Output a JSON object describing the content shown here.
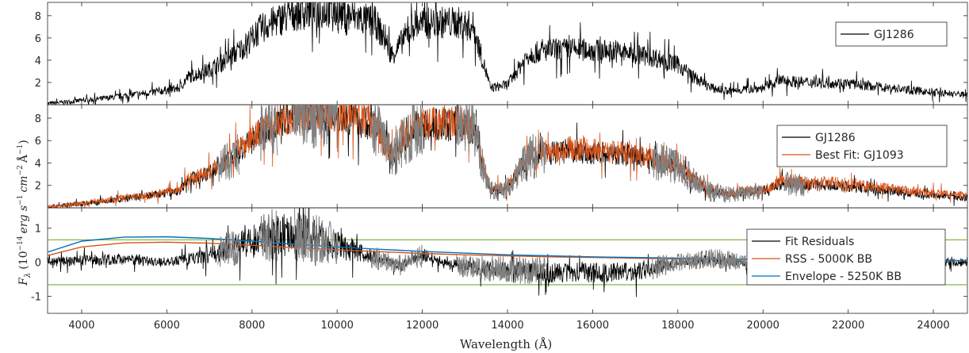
{
  "figure": {
    "xlabel": "Wavelength (Å)",
    "ylabel": "F_λ (10^-14 erg s^-1 cm^-2 Å^-1)",
    "ylabel_parts": {
      "base": "F",
      "sub": "λ",
      "scale": "10",
      "scale_exp": "−14",
      "u1": "erg s",
      "u1_exp": "−1",
      "u2": "cm",
      "u2_exp": "−2",
      "u3": "Å",
      "u3_exp": "−1"
    }
  },
  "chart_data": [
    {
      "type": "line",
      "panel": "top",
      "xlim": [
        3200,
        24800
      ],
      "ylim": [
        0,
        9.2
      ],
      "yticks": [
        2,
        4,
        6,
        8
      ],
      "xticks": [
        4000,
        6000,
        8000,
        10000,
        12000,
        14000,
        16000,
        18000,
        20000,
        22000,
        24000
      ],
      "legend": {
        "placement": "top-right",
        "entries": [
          "GJ1286"
        ]
      },
      "series": [
        {
          "name": "GJ1286",
          "color": "#000000",
          "x": [
            3200,
            3800,
            4600,
            5200,
            5800,
            6300,
            6500,
            6900,
            7300,
            7600,
            7800,
            8200,
            8600,
            9000,
            9400,
            9800,
            10300,
            10900,
            11300,
            11800,
            12300,
            12800,
            13200,
            13600,
            14000,
            14500,
            15000,
            15500,
            16000,
            16500,
            17000,
            17500,
            18000,
            18400,
            18800,
            19200,
            19600,
            20000,
            20400,
            21000,
            21500,
            22000,
            22500,
            23000,
            23500,
            24000,
            24800
          ],
          "y": [
            0.1,
            0.3,
            0.6,
            0.9,
            1.2,
            1.5,
            2.5,
            3.0,
            3.8,
            4.6,
            5.2,
            6.8,
            7.6,
            8.2,
            8.4,
            8.5,
            8.0,
            7.4,
            4.5,
            7.2,
            7.4,
            7.4,
            7.0,
            1.5,
            1.8,
            4.6,
            4.9,
            5.0,
            4.9,
            4.8,
            4.6,
            4.2,
            3.6,
            2.4,
            1.5,
            1.2,
            1.4,
            1.5,
            2.2,
            2.0,
            2.0,
            1.9,
            1.7,
            1.5,
            1.3,
            1.1,
            0.9
          ]
        }
      ]
    },
    {
      "type": "line",
      "panel": "middle",
      "xlim": [
        3200,
        24800
      ],
      "ylim": [
        0,
        9.2
      ],
      "yticks": [
        2,
        4,
        6,
        8
      ],
      "xticks": [
        4000,
        6000,
        8000,
        10000,
        12000,
        14000,
        16000,
        18000,
        20000,
        22000,
        24000
      ],
      "legend": {
        "placement": "middle-right",
        "entries": [
          "GJ1286",
          "Best Fit: GJ1093"
        ]
      },
      "series": [
        {
          "name": "GJ1286",
          "color": "#000000",
          "x": [
            3200,
            3800,
            4600,
            5200,
            5800,
            6300,
            6500,
            6900,
            7300,
            7600,
            7800,
            8200,
            8600,
            9000,
            9400,
            9800,
            10300,
            10900,
            11300,
            11800,
            12300,
            12800,
            13200,
            13600,
            14000,
            14500,
            15000,
            15500,
            16000,
            16500,
            17000,
            17500,
            18000,
            18400,
            18800,
            19200,
            19600,
            20000,
            20400,
            21000,
            21500,
            22000,
            22500,
            23000,
            23500,
            24000,
            24800
          ],
          "y": [
            0.1,
            0.3,
            0.6,
            0.9,
            1.2,
            1.5,
            2.5,
            3.0,
            3.8,
            4.6,
            5.2,
            6.8,
            7.6,
            8.2,
            8.4,
            8.5,
            8.0,
            7.4,
            4.5,
            7.2,
            7.4,
            7.4,
            7.0,
            1.5,
            1.8,
            4.6,
            4.9,
            5.0,
            4.9,
            4.8,
            4.6,
            4.2,
            3.6,
            2.4,
            1.5,
            1.2,
            1.4,
            1.5,
            2.2,
            2.0,
            2.0,
            1.9,
            1.7,
            1.5,
            1.3,
            1.1,
            0.9
          ]
        },
        {
          "name": "Best Fit: GJ1093",
          "color": "#D95319",
          "x": [
            3200,
            3800,
            4600,
            5200,
            5800,
            6300,
            6500,
            6900,
            7300,
            7600,
            7800,
            8200,
            8600,
            9000,
            9400,
            9800,
            10300,
            10900,
            11300,
            11800,
            12300,
            12800,
            13200,
            13600,
            14000,
            14500,
            15000,
            15500,
            16000,
            16500,
            17000,
            17500,
            18000,
            18400,
            18800,
            19200,
            19600,
            20000,
            20400,
            21000,
            21500,
            22000,
            22500,
            23000,
            23500,
            24000,
            24800
          ],
          "y": [
            0.1,
            0.3,
            0.7,
            1.0,
            1.3,
            1.6,
            2.6,
            3.1,
            3.9,
            4.9,
            5.4,
            6.9,
            7.7,
            8.3,
            8.5,
            8.6,
            8.1,
            7.6,
            4.6,
            7.4,
            7.6,
            7.7,
            7.2,
            1.6,
            1.9,
            4.8,
            5.2,
            5.3,
            5.2,
            5.0,
            4.7,
            4.3,
            3.7,
            2.5,
            1.6,
            1.3,
            1.5,
            1.6,
            2.3,
            2.3,
            2.3,
            2.2,
            2.0,
            1.7,
            1.5,
            1.3,
            1.1
          ]
        }
      ]
    },
    {
      "type": "line",
      "panel": "bottom",
      "xlim": [
        3200,
        24800
      ],
      "ylim": [
        -1.5,
        1.6
      ],
      "yticks": [
        -1,
        0,
        1
      ],
      "ytick_labels": [
        "-1",
        "0",
        "1"
      ],
      "xticks": [
        4000,
        6000,
        8000,
        10000,
        12000,
        14000,
        16000,
        18000,
        20000,
        22000,
        24000
      ],
      "legend": {
        "placement": "right",
        "entries": [
          "Fit Residuals",
          "RSS - 5000K BB",
          "Envelope - 5250K BB"
        ]
      },
      "hlines": {
        "color": "#77AC30",
        "values": [
          0.66,
          -0.66
        ]
      },
      "series": [
        {
          "name": "Fit Residuals",
          "color": "#000000",
          "x": [
            3200,
            4000,
            5000,
            6000,
            6500,
            7000,
            7500,
            8000,
            8500,
            9000,
            9500,
            10000,
            10500,
            11000,
            11500,
            12000,
            12500,
            13000,
            13500,
            14000,
            15000,
            16000,
            17000,
            18000,
            19000,
            20000,
            21000,
            22000,
            23000,
            24000,
            24800
          ],
          "y": [
            0.0,
            0.05,
            0.1,
            0.0,
            0.1,
            0.2,
            0.4,
            0.6,
            0.8,
            0.9,
            0.7,
            0.5,
            0.3,
            0.1,
            -0.1,
            0.2,
            0.0,
            -0.1,
            -0.2,
            -0.2,
            -0.3,
            -0.3,
            -0.3,
            0.0,
            0.1,
            -0.1,
            0.1,
            0.1,
            0.0,
            0.0,
            0.0
          ]
        },
        {
          "name": "RSS - 5000K BB",
          "color": "#D95319",
          "x": [
            3200,
            4000,
            5000,
            6000,
            7000,
            8000,
            9000,
            10000,
            11000,
            12000,
            13000,
            14000,
            15000,
            16000,
            17000,
            18000,
            19000,
            20000,
            21000,
            22000,
            23000,
            24000,
            24800
          ],
          "y": [
            0.2,
            0.45,
            0.57,
            0.59,
            0.56,
            0.5,
            0.43,
            0.37,
            0.31,
            0.26,
            0.22,
            0.19,
            0.16,
            0.14,
            0.12,
            0.1,
            0.09,
            0.08,
            0.07,
            0.06,
            0.05,
            0.045,
            0.04
          ]
        },
        {
          "name": "Envelope - 5250K BB",
          "color": "#0072BD",
          "x": [
            3200,
            4000,
            5000,
            6000,
            7000,
            8000,
            9000,
            10000,
            11000,
            12000,
            13000,
            14000,
            15000,
            16000,
            17000,
            18000,
            19000,
            20000,
            21000,
            22000,
            23000,
            24000,
            24800
          ],
          "y": [
            0.3,
            0.62,
            0.74,
            0.75,
            0.7,
            0.62,
            0.53,
            0.45,
            0.38,
            0.32,
            0.27,
            0.22,
            0.19,
            0.16,
            0.14,
            0.12,
            0.1,
            0.09,
            0.08,
            0.07,
            0.06,
            0.055,
            0.05
          ]
        }
      ]
    }
  ]
}
